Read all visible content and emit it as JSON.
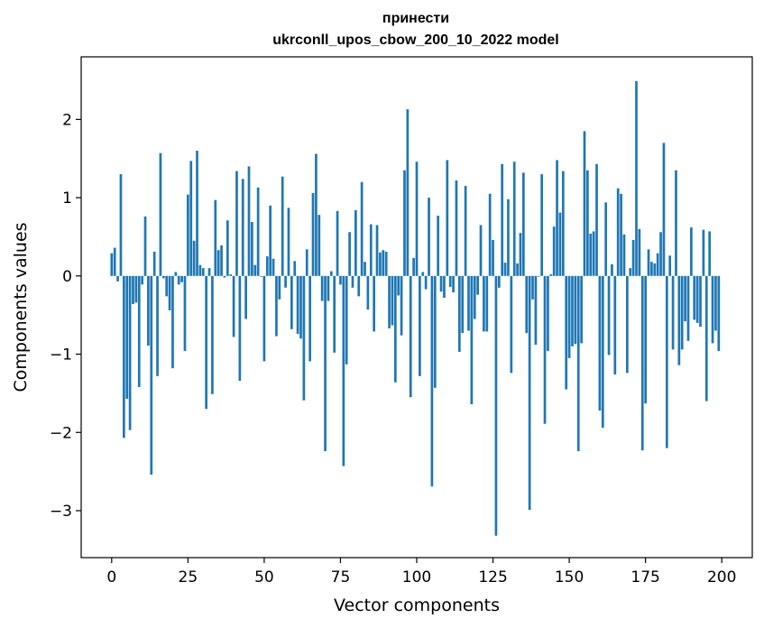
{
  "chart_data": {
    "type": "bar",
    "title_lines": [
      "принести",
      "ukrconll_upos_cbow_200_10_2022 model"
    ],
    "xlabel": "Vector components",
    "ylabel": "Components values",
    "xlim": [
      -10,
      210
    ],
    "ylim": [
      -3.6,
      2.8
    ],
    "x_ticks": [
      0,
      25,
      50,
      75,
      100,
      125,
      150,
      175,
      200
    ],
    "x_tick_labels": [
      "0",
      "25",
      "50",
      "75",
      "100",
      "125",
      "150",
      "175",
      "200"
    ],
    "y_ticks": [
      -3,
      -2,
      -1,
      0,
      1,
      2
    ],
    "y_tick_labels": [
      "−3",
      "−2",
      "−1",
      "0",
      "1",
      "2"
    ],
    "grid": false,
    "bar_color": "#1f77b4",
    "values": [
      0.29,
      0.36,
      -0.07,
      1.3,
      -2.07,
      -1.57,
      -1.97,
      -0.36,
      -0.34,
      -1.42,
      -0.11,
      0.76,
      -0.89,
      -2.54,
      0.31,
      -1.28,
      1.57,
      -0.03,
      -0.26,
      -0.44,
      -1.18,
      0.05,
      -0.11,
      -0.08,
      -0.96,
      1.04,
      1.47,
      0.45,
      1.6,
      0.14,
      0.1,
      -1.7,
      0.1,
      -1.51,
      0.97,
      0.33,
      0.39,
      -0.02,
      0.71,
      0.02,
      -0.78,
      1.34,
      -1.34,
      1.24,
      -0.55,
      1.4,
      0.69,
      0.14,
      1.13,
      -0.01,
      -1.09,
      0.25,
      0.9,
      0.22,
      -0.77,
      -0.3,
      1.27,
      -0.15,
      0.87,
      -0.68,
      0.19,
      -0.74,
      -0.8,
      -1.59,
      0.34,
      -1.09,
      1.06,
      1.56,
      0.78,
      -0.32,
      -2.24,
      -0.32,
      0.06,
      -0.98,
      0.83,
      -0.11,
      -2.43,
      -1.13,
      0.56,
      -0.15,
      0.84,
      -0.26,
      1.2,
      0.18,
      -0.43,
      0.66,
      -0.71,
      0.65,
      0.3,
      0.33,
      0.31,
      -0.67,
      -0.63,
      -1.36,
      -0.25,
      -0.76,
      1.35,
      2.13,
      -1.55,
      0.23,
      1.46,
      -1.28,
      0.05,
      -0.17,
      1.0,
      -2.69,
      -1.43,
      0.77,
      -0.2,
      -0.28,
      1.48,
      -0.14,
      -0.21,
      1.22,
      -0.97,
      -0.73,
      1.15,
      -0.7,
      -1.64,
      -0.55,
      -0.24,
      0.65,
      -0.71,
      -0.71,
      1.05,
      0.46,
      -3.32,
      -0.15,
      1.43,
      0.17,
      0.98,
      -1.24,
      1.46,
      0.16,
      0.55,
      1.32,
      -0.73,
      -2.99,
      -0.3,
      -0.88,
      -0.01,
      1.3,
      -1.89,
      -0.96,
      0.02,
      0.63,
      1.48,
      0.81,
      1.34,
      -1.45,
      -1.05,
      -0.9,
      -0.87,
      -2.24,
      -0.86,
      1.85,
      1.35,
      0.54,
      0.57,
      1.43,
      -1.72,
      -1.94,
      0.94,
      -1.01,
      0.15,
      -1.26,
      1.12,
      1.05,
      0.53,
      -1.24,
      0.1,
      0.46,
      2.49,
      0.6,
      -2.23,
      -1.63,
      0.34,
      0.18,
      0.16,
      0.29,
      0.56,
      1.7,
      -2.2,
      0.26,
      -0.94,
      1.35,
      -1.14,
      -0.94,
      -0.58,
      -0.83,
      0.62,
      -0.56,
      -0.6,
      -0.65,
      0.59,
      -1.6,
      0.57,
      -0.86,
      -0.7,
      -0.96
    ]
  }
}
